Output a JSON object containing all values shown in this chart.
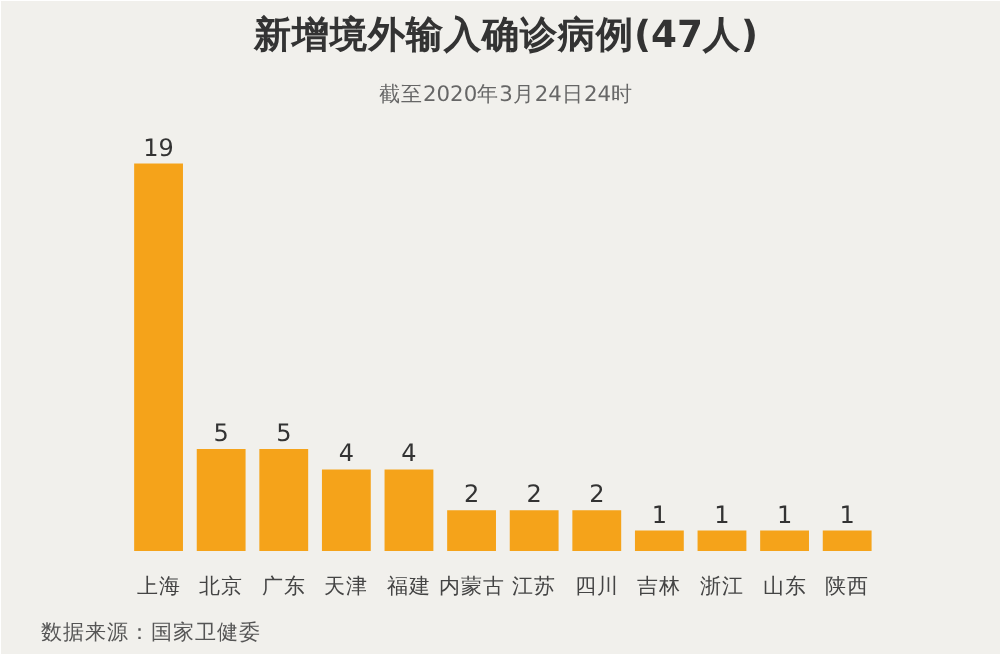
{
  "chart_data": {
    "type": "bar",
    "title": "新增境外输入确诊病例(47人)",
    "subtitle": "截至2020年3月24日24时",
    "categories": [
      "上海",
      "北京",
      "广东",
      "天津",
      "福建",
      "内蒙古",
      "江苏",
      "四川",
      "吉林",
      "浙江",
      "山东",
      "陕西"
    ],
    "values": [
      19,
      5,
      5,
      4,
      4,
      2,
      2,
      2,
      1,
      1,
      1,
      1
    ],
    "color": "#f5a31a",
    "data_labels": true,
    "grid": false,
    "annotations": [
      "数据来源：国家卫健委"
    ]
  }
}
